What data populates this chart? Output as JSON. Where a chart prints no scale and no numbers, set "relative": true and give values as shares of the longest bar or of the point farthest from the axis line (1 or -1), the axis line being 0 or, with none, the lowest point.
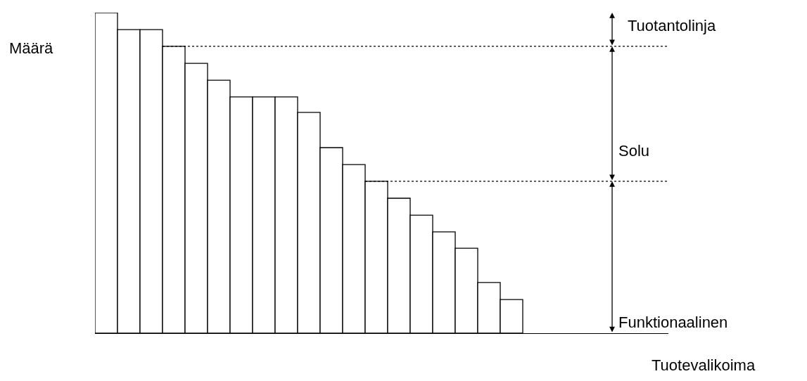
{
  "chart_data": {
    "type": "bar",
    "relative": true,
    "ylabel": "Määrä",
    "categories": [
      null,
      null,
      null,
      null,
      null,
      null,
      null,
      null,
      null,
      null,
      null,
      null,
      null,
      null,
      null,
      null,
      null,
      null,
      null
    ],
    "values": [
      1,
      0.947,
      0.947,
      0.895,
      0.842,
      0.789,
      0.737,
      0.737,
      0.737,
      0.689,
      0.579,
      0.526,
      0.474,
      0.421,
      0.368,
      0.316,
      0.265,
      0.158,
      0.105
    ],
    "color": "#ffffff",
    "ref_lines": [
      {
        "axis": "y",
        "value": 0.895,
        "line_style": "dotted"
      },
      {
        "axis": "y",
        "value": 0.474,
        "line_style": "dotted"
      }
    ],
    "annotations": [
      "Tuotantolinja",
      "Solu",
      "Funktionaalinen",
      "Tuotevalikoima"
    ],
    "grid": false
  }
}
